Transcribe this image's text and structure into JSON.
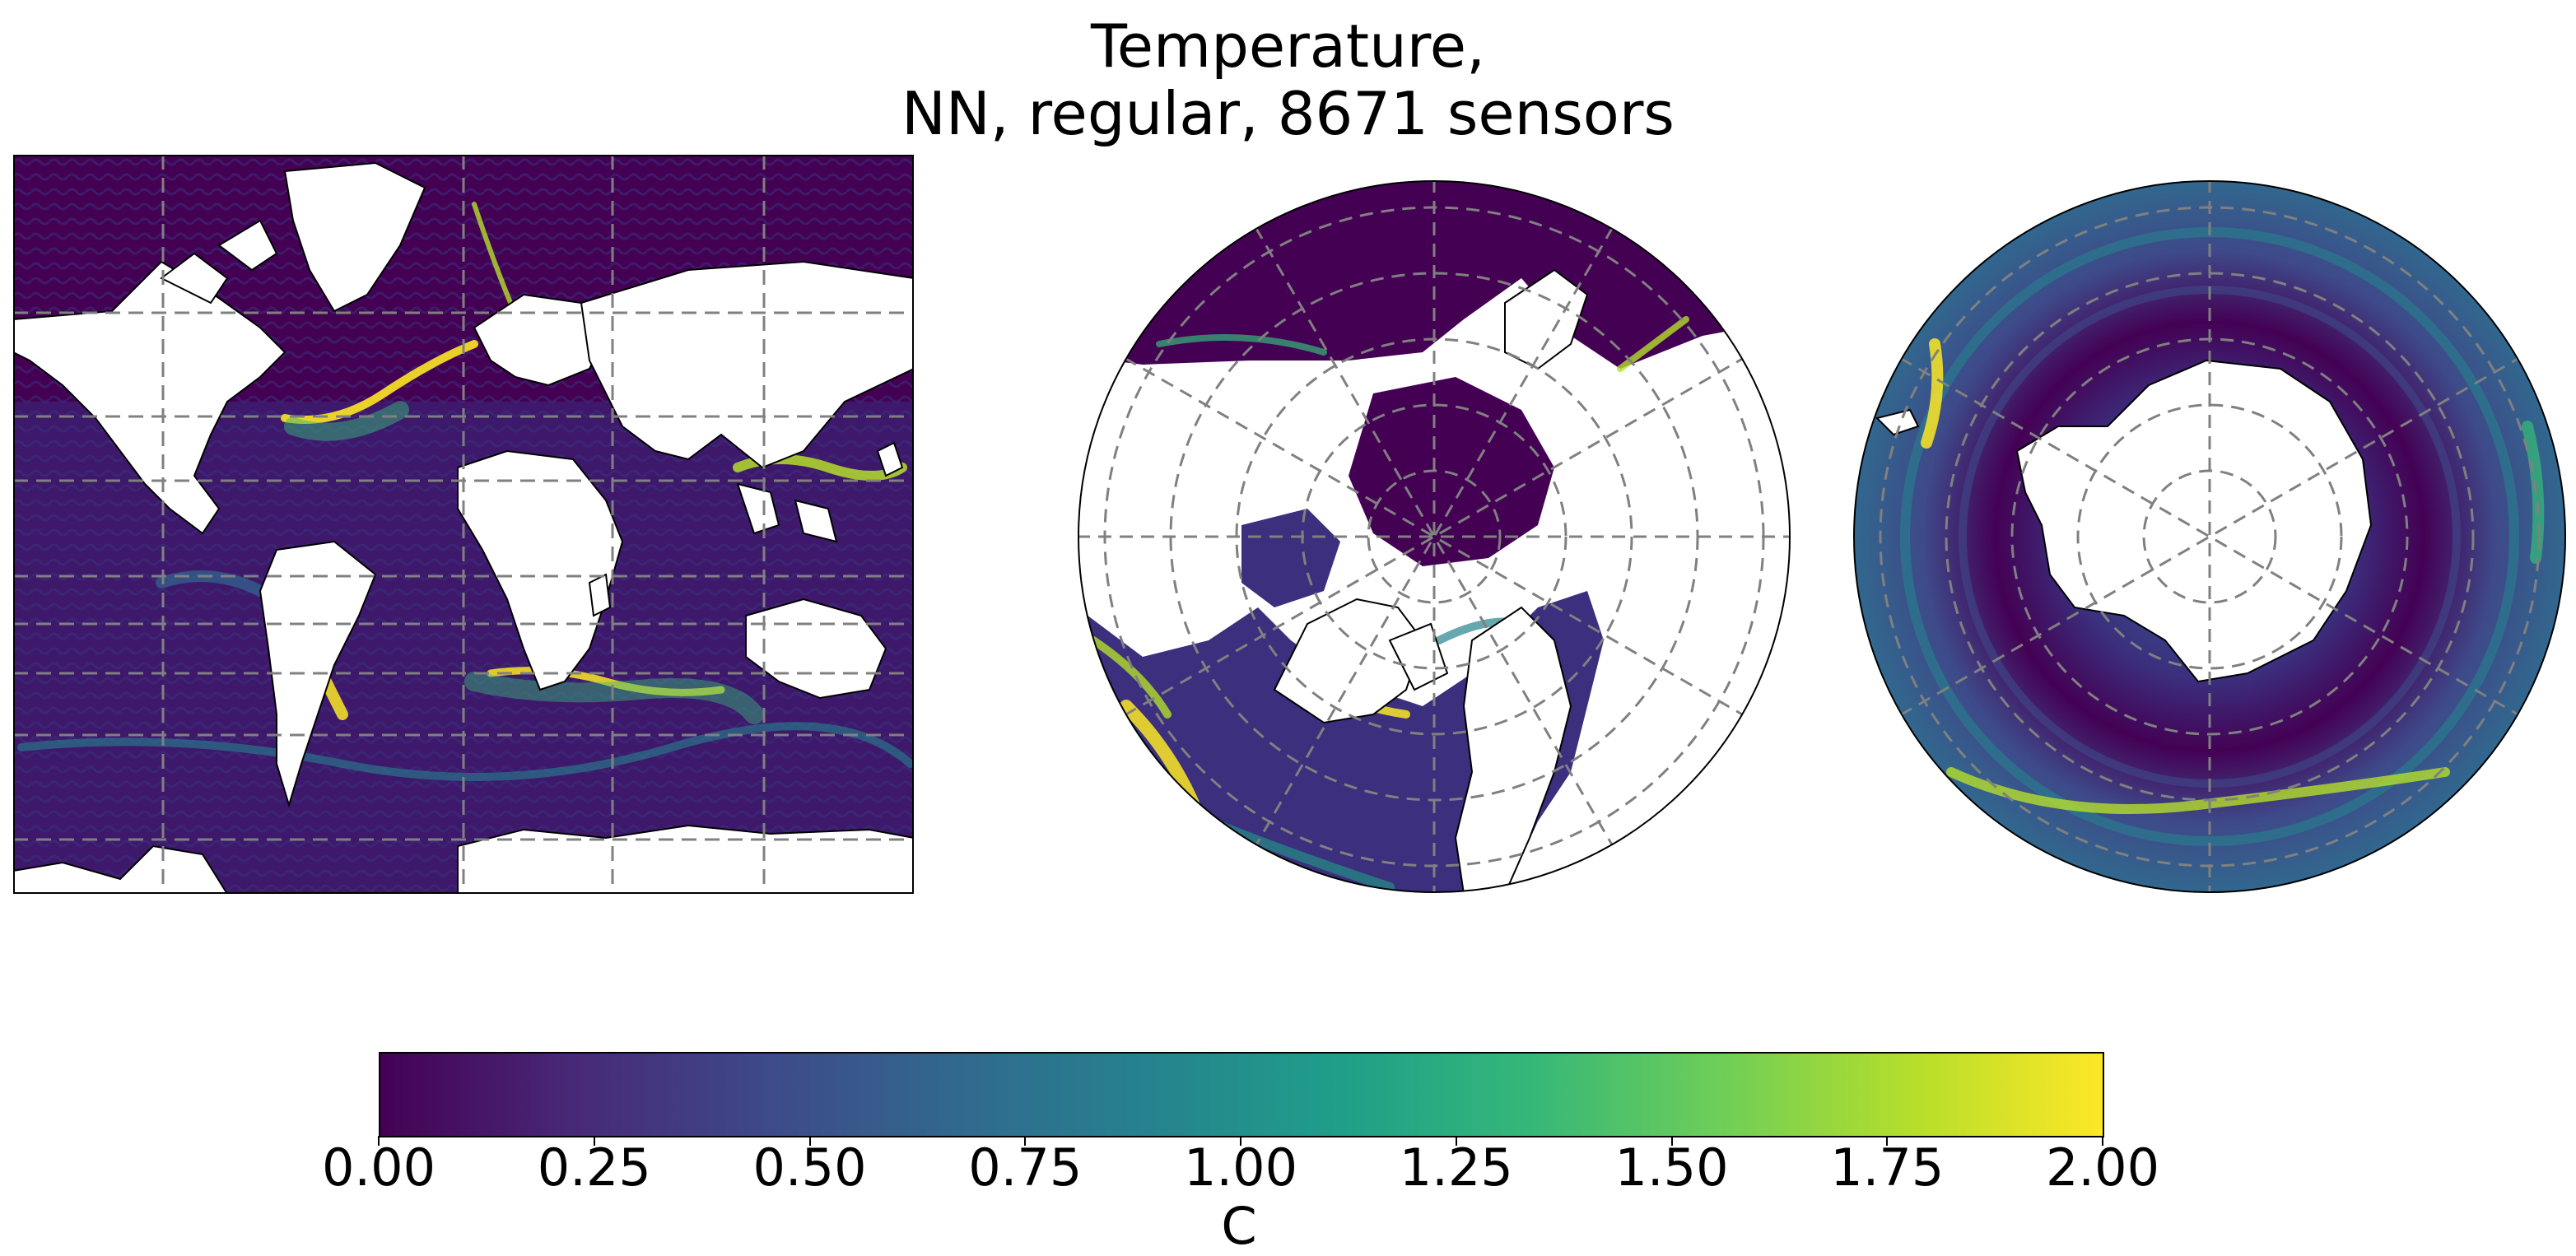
{
  "figure": {
    "title_line1": "Temperature,",
    "title_line2": "NN, regular, 8671 sensors"
  },
  "panels": [
    {
      "name": "world-map",
      "projection": "equirectangular-regional"
    },
    {
      "name": "north-polar-map",
      "projection": "north-polar-stereographic"
    },
    {
      "name": "south-polar-map",
      "projection": "south-polar-stereographic"
    }
  ],
  "colormap": {
    "name": "viridis",
    "stops": [
      "#440154",
      "#482878",
      "#3e4989",
      "#31688e",
      "#26828e",
      "#1f9e89",
      "#35b779",
      "#6ece58",
      "#b5de2b",
      "#fde725"
    ],
    "land_color": "#ffffff",
    "graticule_color": "#808080"
  },
  "colorbar": {
    "vmin": 0.0,
    "vmax": 2.0,
    "ticks": [
      "0.00",
      "0.25",
      "0.50",
      "0.75",
      "1.00",
      "1.25",
      "1.50",
      "1.75",
      "2.00"
    ],
    "label": "C"
  }
}
